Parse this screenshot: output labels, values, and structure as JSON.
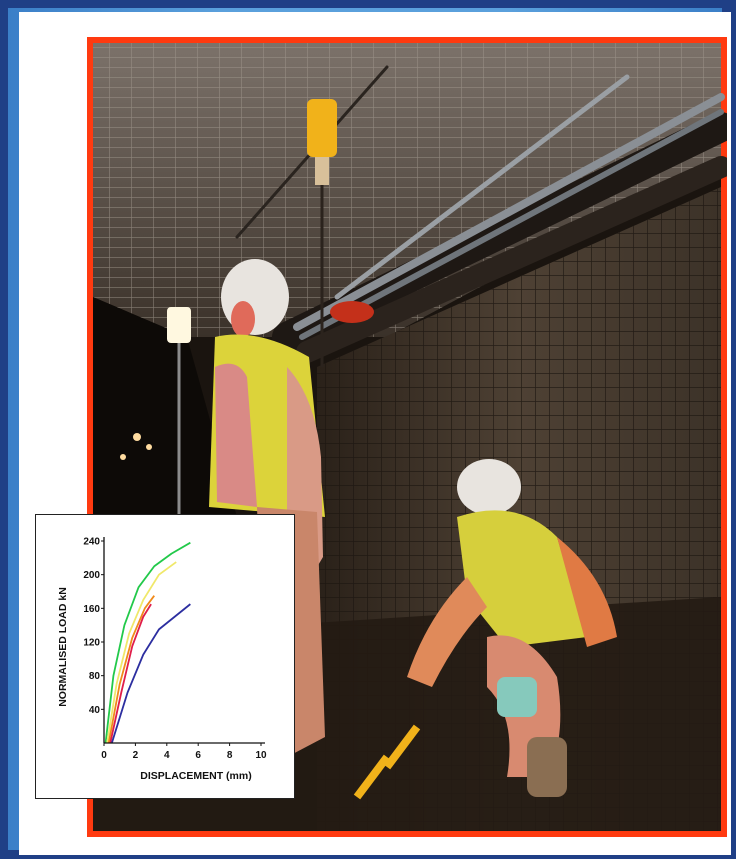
{
  "photo": {
    "subject": "underground-mine-tunnel",
    "colors": {
      "border": "#ff3a10",
      "background": "#1f3f86"
    }
  },
  "chart_data": {
    "type": "line",
    "xlabel": "DISPLACEMENT (mm)",
    "ylabel": "NORMALISED LOAD kN",
    "xlim": [
      0,
      10
    ],
    "ylim": [
      0,
      240
    ],
    "xticks": [
      0,
      2,
      4,
      6,
      8,
      10
    ],
    "yticks": [
      40,
      80,
      120,
      160,
      200,
      240
    ],
    "series": [
      {
        "color": "#22c94a",
        "x": [
          0.1,
          0.6,
          1.3,
          2.2,
          3.2,
          4.3,
          5.5
        ],
        "y": [
          0,
          80,
          140,
          185,
          210,
          225,
          238
        ]
      },
      {
        "color": "#f0e86a",
        "x": [
          0.2,
          0.8,
          1.6,
          2.5,
          3.5,
          4.6
        ],
        "y": [
          0,
          70,
          130,
          170,
          200,
          215
        ]
      },
      {
        "color": "#f08a1a",
        "x": [
          0.3,
          1.0,
          1.8,
          2.6,
          3.2
        ],
        "y": [
          0,
          70,
          125,
          160,
          175
        ]
      },
      {
        "color": "#e01e4a",
        "x": [
          0.4,
          1.1,
          1.8,
          2.5,
          3.0
        ],
        "y": [
          0,
          60,
          115,
          150,
          165
        ]
      },
      {
        "color": "#2c2ea0",
        "x": [
          0.5,
          1.5,
          2.5,
          3.5,
          4.5,
          5.5
        ],
        "y": [
          0,
          60,
          105,
          135,
          150,
          165
        ]
      }
    ]
  }
}
